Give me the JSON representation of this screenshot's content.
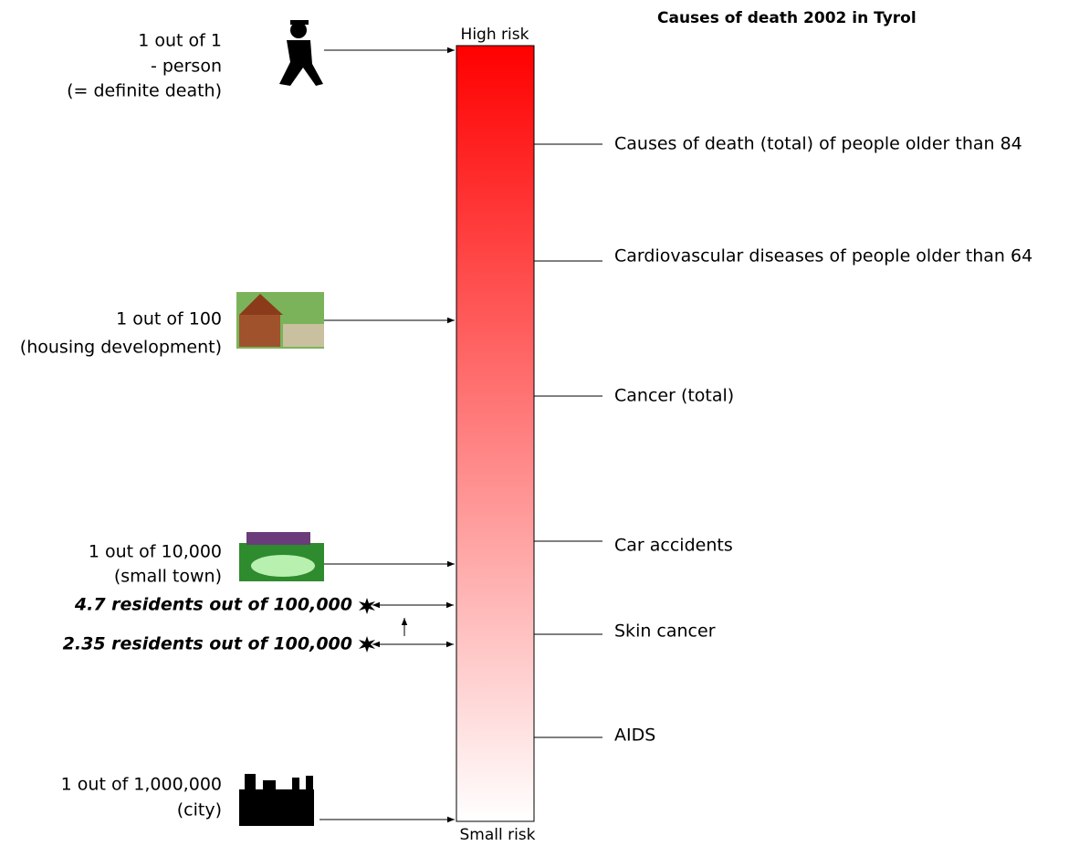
{
  "title": "Causes of death 2002 in Tyrol",
  "scale": {
    "top_label": "High risk",
    "bottom_label": "Small risk"
  },
  "left_items": [
    {
      "lines": [
        "1 out of 1",
        "- person",
        "(= definite death)"
      ]
    },
    {
      "lines": [
        "1 out of 100",
        "(housing development)"
      ]
    },
    {
      "lines": [
        "1 out of 10,000",
        "(small town)"
      ]
    },
    {
      "lines": [
        "4.7 residents out of 100,000"
      ]
    },
    {
      "lines": [
        "2.35 residents out of 100,000"
      ]
    },
    {
      "lines": [
        "1 out of 1,000,000",
        "(city)"
      ]
    }
  ],
  "right_items": [
    "Causes of death (total) of people older than 84",
    "Cardiovascular diseases of people older than 64",
    "Cancer (total)",
    "Car accidents",
    "Skin cancer",
    "AIDS"
  ]
}
